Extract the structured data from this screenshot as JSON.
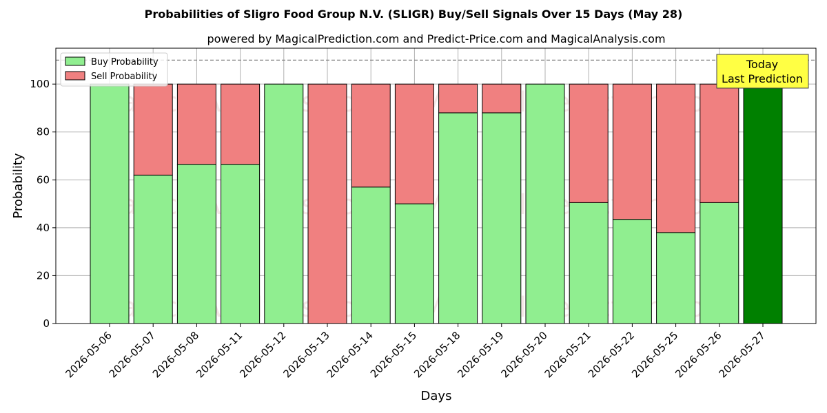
{
  "chart_data": {
    "type": "bar",
    "stacked": true,
    "title": "Probabilities of Sligro Food Group N.V. (SLIGR) Buy/Sell Signals Over 15 Days (May 28)",
    "subtitle": "powered by MagicalPrediction.com and Predict-Price.com and MagicalAnalysis.com",
    "xlabel": "Days",
    "ylabel": "Probability",
    "ylim": [
      0,
      115
    ],
    "yticks": [
      0,
      20,
      40,
      60,
      80,
      100
    ],
    "grid": true,
    "legend_position": "top-left",
    "threshold_line": 110,
    "categories": [
      "2026-05-06",
      "2026-05-07",
      "2026-05-08",
      "2026-05-11",
      "2026-05-12",
      "2026-05-13",
      "2026-05-14",
      "2026-05-15",
      "2026-05-18",
      "2026-05-19",
      "2026-05-20",
      "2026-05-21",
      "2026-05-22",
      "2026-05-25",
      "2026-05-26",
      "2026-05-27"
    ],
    "series": [
      {
        "name": "Buy Probability",
        "color": "#90ee90",
        "values": [
          100,
          62,
          66.5,
          66.5,
          100,
          0,
          57,
          50,
          88,
          88,
          100,
          50.5,
          43.5,
          38,
          50.5,
          100
        ]
      },
      {
        "name": "Sell Probability",
        "color": "#f08080",
        "values": [
          0,
          38,
          33.5,
          33.5,
          0,
          100,
          43,
          50,
          12,
          12,
          0,
          49.5,
          56.5,
          62,
          49.5,
          0
        ]
      }
    ],
    "today_index": 15,
    "today_color": "#008000",
    "annotation": {
      "line1": "Today",
      "line2": "Last Prediction",
      "bg": "#ffff44"
    },
    "watermarks": [
      "MagicalAnalysis.com",
      "MagicalPrediction.com"
    ]
  }
}
